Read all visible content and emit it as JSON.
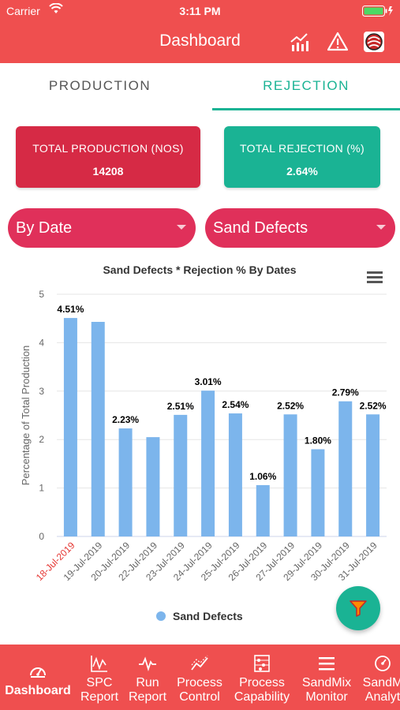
{
  "status_bar": {
    "carrier": "Carrier",
    "time": "3:11 PM"
  },
  "nav": {
    "title": "Dashboard",
    "icons": [
      "chart-icon",
      "warning-icon",
      "profile-icon"
    ]
  },
  "tabs": [
    {
      "label": "PRODUCTION",
      "active": false
    },
    {
      "label": "REJECTION",
      "active": true
    }
  ],
  "cards": {
    "production": {
      "label": "TOTAL PRODUCTION (NOS)",
      "value": "14208"
    },
    "rejection": {
      "label": "TOTAL REJECTION (%)",
      "value": "2.64%"
    }
  },
  "filters": {
    "period": "By Date",
    "defect": "Sand Defects"
  },
  "colors": {
    "brand": "#ef4f4f",
    "accent": "#1ab394",
    "bar": "#7cb5ec",
    "highlight_tick": "#e53935"
  },
  "chart_data": {
    "type": "bar",
    "title": "Sand Defects * Rejection % By Dates",
    "ylabel": "Percentage of Total Production",
    "ylim": [
      0,
      5
    ],
    "yticks": [
      "0",
      "1",
      "2",
      "3",
      "4",
      "5"
    ],
    "categories": [
      "18-Jul-2019",
      "19-Jul-2019",
      "20-Jul-2019",
      "22-Jul-2019",
      "23-Jul-2019",
      "24-Jul-2019",
      "25-Jul-2019",
      "26-Jul-2019",
      "27-Jul-2019",
      "29-Jul-2019",
      "30-Jul-2019",
      "31-Jul-2019"
    ],
    "highlighted_category": "18-Jul-2019",
    "series": [
      {
        "name": "Sand Defects",
        "values": [
          4.51,
          4.43,
          2.23,
          2.05,
          2.51,
          3.01,
          2.54,
          1.06,
          2.52,
          1.8,
          2.79,
          2.52
        ]
      }
    ],
    "data_labels": [
      "4.51%",
      "",
      "2.23%",
      "",
      "2.51%",
      "3.01%",
      "2.54%",
      "1.06%",
      "2.52%",
      "1.80%",
      "2.79%",
      "2.52%"
    ],
    "legend": {
      "placement": "bottom-center",
      "entries": [
        "Sand Defects"
      ]
    },
    "grid": true
  },
  "bottom_nav": [
    {
      "label": "Dashboard",
      "icon": "speedometer-icon",
      "active": true
    },
    {
      "label": "SPC\nReport",
      "icon": "spc-chart-icon",
      "active": false
    },
    {
      "label": "Run\nReport",
      "icon": "pulse-icon",
      "active": false
    },
    {
      "label": "Process\nControl",
      "icon": "trend-icon",
      "active": false
    },
    {
      "label": "Process\nCapability",
      "icon": "abacus-icon",
      "active": false
    },
    {
      "label": "SandMix\nMonitor",
      "icon": "menu-icon",
      "active": false
    },
    {
      "label": "SandM\nAnalyt",
      "icon": "gauge-icon",
      "active": false
    }
  ]
}
